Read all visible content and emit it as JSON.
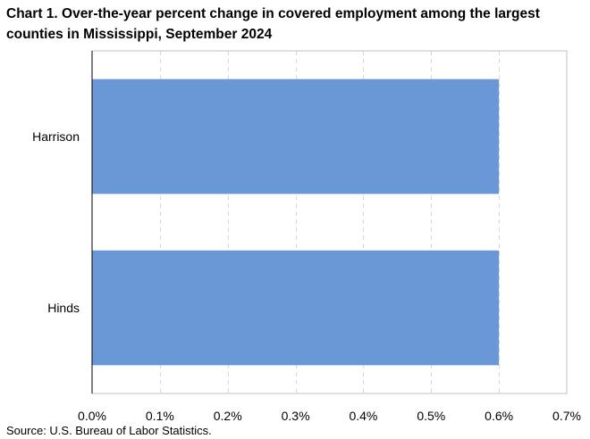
{
  "title": "Chart 1. Over-the-year percent change in covered employment among the largest counties in Mississippi,  September 2024",
  "source": "Source: U.S. Bureau of Labor Statistics.",
  "chart_data": {
    "type": "bar",
    "orientation": "horizontal",
    "categories": [
      "Harrison",
      "Hinds"
    ],
    "values": [
      0.6,
      0.6
    ],
    "unit": "%",
    "xlim": [
      0,
      0.7
    ],
    "xticks": [
      0.0,
      0.1,
      0.2,
      0.3,
      0.4,
      0.5,
      0.6,
      0.7
    ],
    "xtick_labels": [
      "0.0%",
      "0.1%",
      "0.2%",
      "0.3%",
      "0.4%",
      "0.5%",
      "0.6%",
      "0.7%"
    ],
    "grid": "vertical-dashed",
    "bar_color": "#6a98d6",
    "legend": "none"
  }
}
